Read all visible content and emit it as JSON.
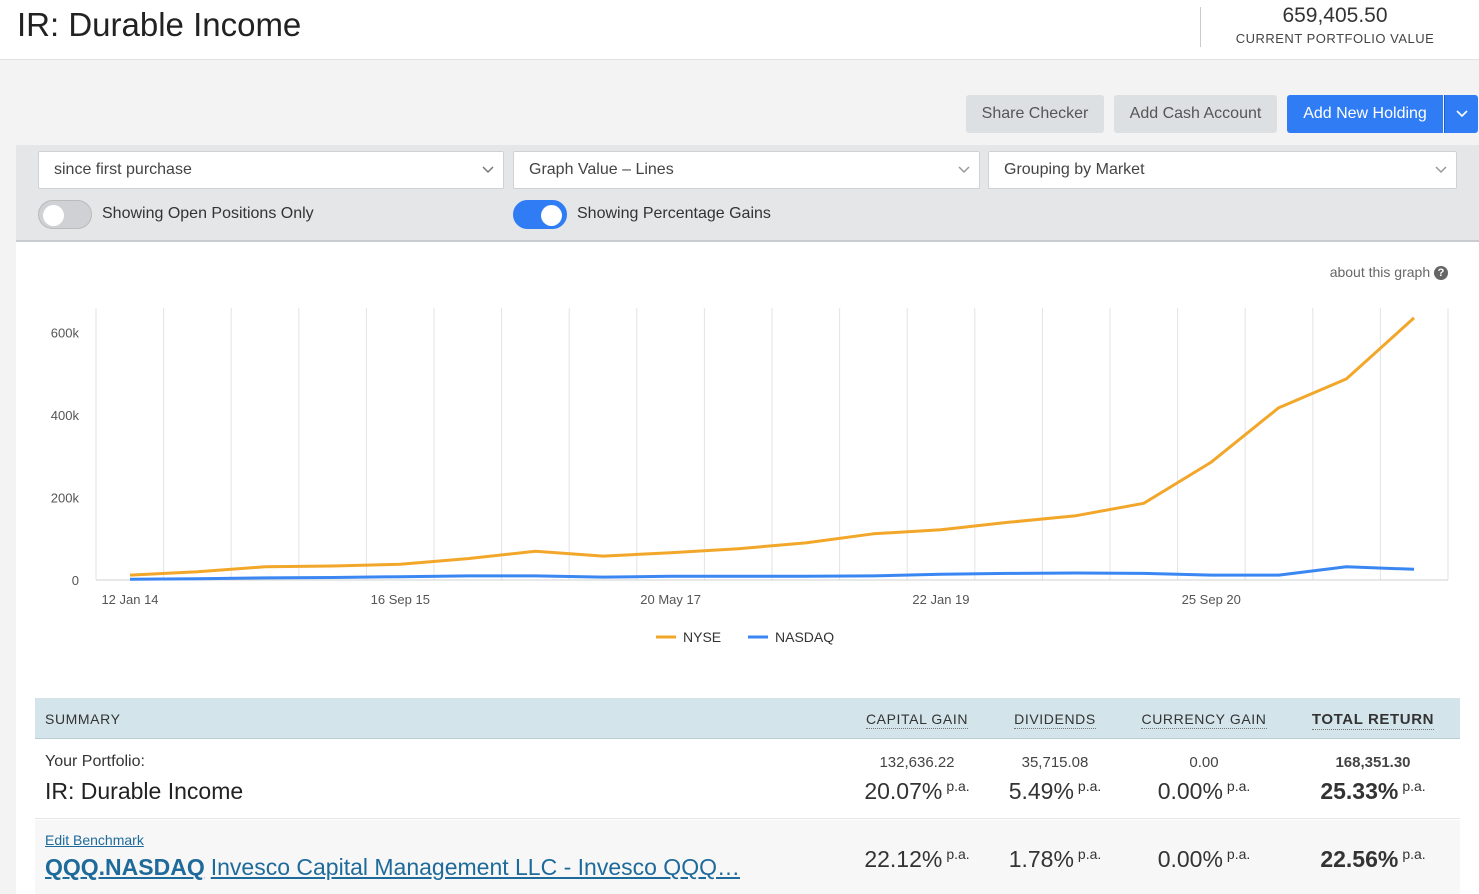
{
  "header": {
    "title": "IR: Durable Income",
    "portfolio_value": "659,405.50",
    "portfolio_value_label": "CURRENT PORTFOLIO VALUE"
  },
  "actions": {
    "share_checker": "Share Checker",
    "add_cash_account": "Add Cash Account",
    "add_new_holding": "Add New Holding"
  },
  "filters": {
    "period": "since first purchase",
    "graph_type": "Graph Value – Lines",
    "grouping": "Grouping by Market",
    "toggle_open_positions": {
      "label": "Showing Open Positions Only",
      "on": false
    },
    "toggle_percentage": {
      "label": "Showing Percentage Gains",
      "on": true
    }
  },
  "chart": {
    "about_label": "about this graph",
    "help_glyph": "?"
  },
  "chart_data": {
    "type": "line",
    "x_tick_labels": [
      "12 Jan 14",
      "16 Sep 15",
      "20 May 17",
      "22 Jan 19",
      "25 Sep 20"
    ],
    "y_tick_labels": [
      "0",
      "200k",
      "400k",
      "600k"
    ],
    "ylim": [
      0,
      660000
    ],
    "x_points": 20,
    "legend_position": "bottom-center",
    "grid": "vertical",
    "series": [
      {
        "name": "NYSE",
        "color": "#f2a72a",
        "values": [
          12000,
          20000,
          32000,
          34000,
          38000,
          52000,
          70000,
          58000,
          66000,
          76000,
          90000,
          112000,
          122000,
          140000,
          156000,
          186000,
          286000,
          418000,
          488000,
          636000
        ]
      },
      {
        "name": "NASDAQ",
        "color": "#3a86f2",
        "values": [
          2000,
          3000,
          5000,
          6000,
          8000,
          10000,
          10000,
          7000,
          9000,
          9000,
          9000,
          10000,
          14000,
          16000,
          17000,
          16000,
          12000,
          12000,
          32000,
          26000
        ]
      }
    ]
  },
  "summary": {
    "headers": {
      "summary": "SUMMARY",
      "capital_gain": "CAPITAL GAIN",
      "dividends": "DIVIDENDS",
      "currency_gain": "CURRENCY GAIN",
      "total_return": "TOTAL RETURN"
    },
    "portfolio": {
      "label": "Your Portfolio:",
      "name": "IR: Durable Income",
      "capital_gain": "132,636.22",
      "capital_gain_pct": "20.07%",
      "dividends": "35,715.08",
      "dividends_pct": "5.49%",
      "currency_gain": "0.00",
      "currency_gain_pct": "0.00%",
      "total_return": "168,351.30",
      "total_return_pct": "25.33%"
    },
    "benchmark": {
      "edit_label": "Edit Benchmark",
      "ticker": "QQQ.NASDAQ",
      "name": "Invesco Capital Management LLC - Invesco QQQ…",
      "capital_gain_pct": "22.12%",
      "dividends_pct": "1.78%",
      "currency_gain_pct": "0.00%",
      "total_return_pct": "22.56%"
    },
    "pa_suffix": "p.a."
  }
}
